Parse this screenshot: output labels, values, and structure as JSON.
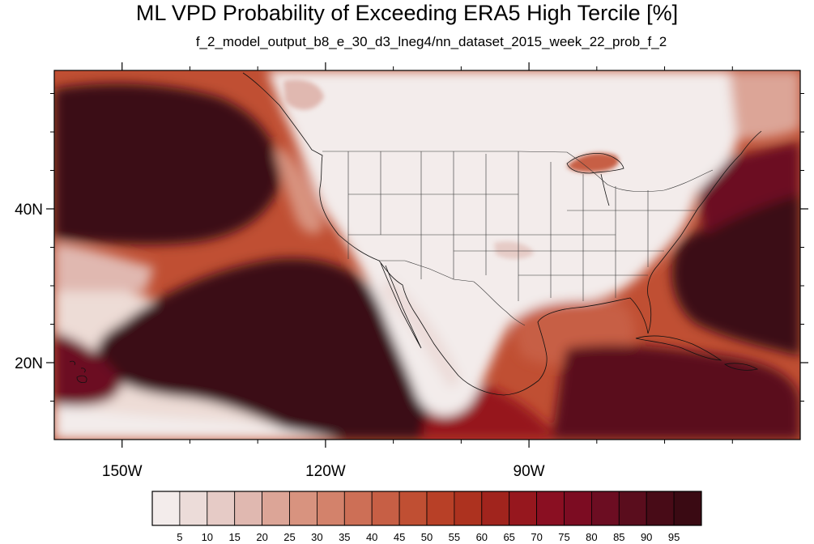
{
  "title": "ML VPD Probability of Exceeding ERA5 High Tercile [%]",
  "subtitle": "f_2_model_output_b8_e_30_d3_lneg4/nn_dataset_2015_week_22_prob_f_2",
  "map": {
    "projection": "cylindrical equidistant",
    "lon_range": [
      -160,
      -50
    ],
    "lat_range": [
      10,
      58
    ],
    "lat_ticks": [
      {
        "value": 40,
        "label": "40N"
      },
      {
        "value": 20,
        "label": "20N"
      }
    ],
    "lon_ticks": [
      {
        "value": -150,
        "label": "150W"
      },
      {
        "value": -120,
        "label": "120W"
      },
      {
        "value": -90,
        "label": "90W"
      }
    ],
    "minor_lat_ticks": [
      15,
      25,
      30,
      35,
      45,
      50,
      55
    ],
    "minor_lon_ticks": [
      -140,
      -130,
      -110,
      -100,
      -80,
      -70,
      -60
    ],
    "qualitative_field": "Low probabilities (light) over land of the contiguous US, Mexico and Canada; high probabilities (dark red) over the northeast Pacific, the Pacific southwest of Baja California, the Gulf of Mexico, the Caribbean and the western Atlantic."
  },
  "colorbar": {
    "labels": [
      "5",
      "10",
      "15",
      "20",
      "25",
      "30",
      "35",
      "40",
      "45",
      "50",
      "55",
      "60",
      "65",
      "70",
      "75",
      "80",
      "85",
      "90",
      "95"
    ],
    "colors": [
      "#f3eceb",
      "#ecdcd9",
      "#e6cbc6",
      "#e0b8b0",
      "#dca597",
      "#d8937f",
      "#d3826b",
      "#cd6f56",
      "#c75f45",
      "#c04f33",
      "#b84027",
      "#ad321f",
      "#a1241d",
      "#96171e",
      "#8a0f22",
      "#7c0c22",
      "#6c0d22",
      "#5a0d1d",
      "#480b17",
      "#3a0a13"
    ]
  }
}
